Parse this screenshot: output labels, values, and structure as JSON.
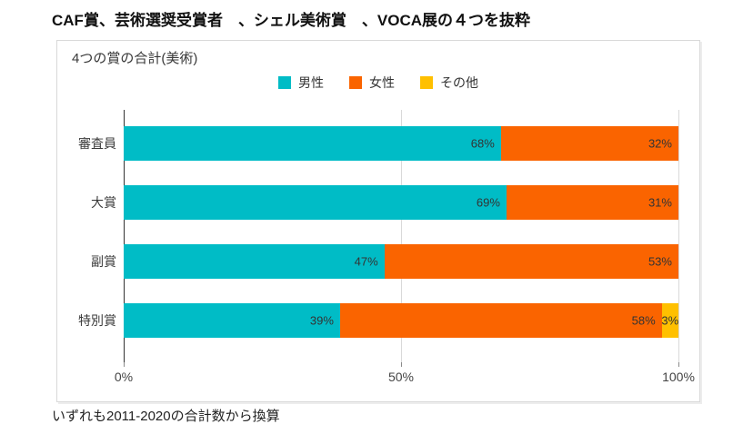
{
  "page": {
    "title": "CAF賞、芸術選奨受賞者　、シェル美術賞　、VOCA展の４つを抜粋",
    "footnote": "いずれも2011-2020の合計数から換算"
  },
  "colors": {
    "male": "#00bcc6",
    "female": "#fa6400",
    "other": "#ffc000",
    "axis_line": "#333333",
    "gridline": "#d9d9d9",
    "label_text": "#333333"
  },
  "chart_data": {
    "type": "bar",
    "orientation": "horizontal",
    "stacked": true,
    "percent": true,
    "title": "4つの賞の合計(美術)",
    "categories": [
      "審査員",
      "大賞",
      "副賞",
      "特別賞"
    ],
    "series": [
      {
        "name": "男性",
        "color": "#00bcc6",
        "values": [
          68,
          69,
          47,
          39
        ]
      },
      {
        "name": "女性",
        "color": "#fa6400",
        "values": [
          32,
          31,
          53,
          58
        ]
      },
      {
        "name": "その他",
        "color": "#ffc000",
        "values": [
          0,
          0,
          0,
          3
        ]
      }
    ],
    "x_ticks": [
      {
        "label": "0%",
        "value": 0
      },
      {
        "label": "50%",
        "value": 50
      },
      {
        "label": "100%",
        "value": 100
      }
    ],
    "xlim": [
      0,
      100
    ],
    "legend_position": "top-center",
    "grid": true,
    "data_labels": "percent"
  }
}
